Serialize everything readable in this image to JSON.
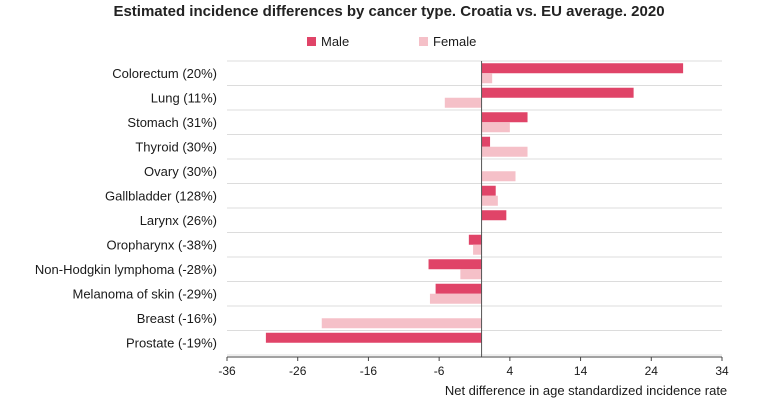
{
  "chart_data": {
    "type": "bar",
    "orientation": "horizontal",
    "title": "Estimated incidence differences by cancer type. Croatia vs. EU average. 2020",
    "xlabel": "Net difference in age standardized incidence rate",
    "ylabel": "",
    "xlim": [
      -36,
      34
    ],
    "xticks": [
      -36,
      -26,
      -16,
      -6,
      4,
      14,
      24,
      34
    ],
    "grid": false,
    "legend_position": "top",
    "categories": [
      "Colorectum (20%)",
      "Lung (11%)",
      "Stomach (31%)",
      "Thyroid (30%)",
      "Ovary (30%)",
      "Gallbladder (128%)",
      "Larynx (26%)",
      "Oropharynx (-38%)",
      "Non-Hodgkin lymphoma (-28%)",
      "Melanoma of skin (-29%)",
      "Breast (-16%)",
      "Prostate (-19%)"
    ],
    "series": [
      {
        "name": "Male",
        "color": "#e04468",
        "values": [
          28.5,
          21.5,
          6.5,
          1.2,
          null,
          2.0,
          3.5,
          -1.8,
          -7.5,
          -6.5,
          null,
          -30.5
        ]
      },
      {
        "name": "Female",
        "color": "#f5c0c8",
        "values": [
          1.5,
          -5.2,
          4.0,
          6.5,
          4.8,
          2.3,
          null,
          -1.2,
          -3.0,
          -7.3,
          -22.6,
          null
        ]
      }
    ]
  }
}
